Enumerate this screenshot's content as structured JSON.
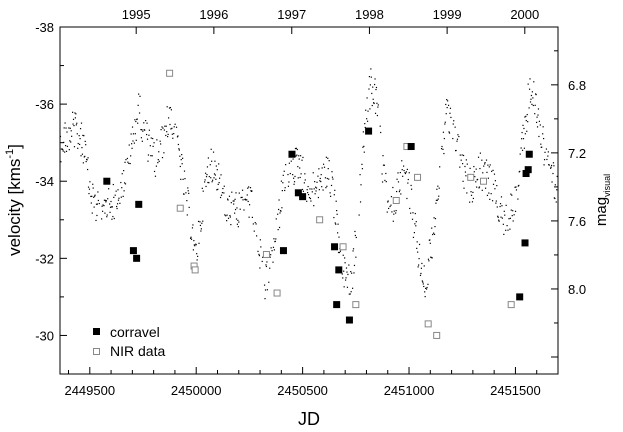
{
  "chart_data": {
    "type": "scatter",
    "xlabel": "JD",
    "ylabel_main": "velocity [kms",
    "ylabel_sup": "-1",
    "ylabel_close": "]",
    "y2label_main": "mag",
    "y2label_sub": "visual",
    "xlim": [
      2449360,
      2451700
    ],
    "ylim": [
      -29,
      -38
    ],
    "y2lim": [
      8.5,
      6.46
    ],
    "grid": false,
    "legend_position": "bottom-left",
    "x_ticks": [
      {
        "value": 2449500,
        "label": "2449500"
      },
      {
        "value": 2450000,
        "label": "2450000"
      },
      {
        "value": 2450500,
        "label": "2450500"
      },
      {
        "value": 2451000,
        "label": "2451000"
      },
      {
        "value": 2451500,
        "label": "2451500"
      }
    ],
    "y_ticks": [
      {
        "value": -38,
        "label": "-38"
      },
      {
        "value": -36,
        "label": "-36"
      },
      {
        "value": -34,
        "label": "-34"
      },
      {
        "value": -32,
        "label": "-32"
      },
      {
        "value": -30,
        "label": "-30"
      }
    ],
    "y2_ticks": [
      {
        "value": 6.8,
        "label": "6.8"
      },
      {
        "value": 7.2,
        "label": "7.2"
      },
      {
        "value": 7.6,
        "label": "7.6"
      },
      {
        "value": 8.0,
        "label": "8.0"
      }
    ],
    "year_ticks": [
      {
        "value": 2449718,
        "label": "1995"
      },
      {
        "value": 2450083,
        "label": "1996"
      },
      {
        "value": 2450449,
        "label": "1997"
      },
      {
        "value": 2450814,
        "label": "1998"
      },
      {
        "value": 2451179,
        "label": "1999"
      },
      {
        "value": 2451544,
        "label": "2000"
      }
    ],
    "series": [
      {
        "name": "corravel",
        "marker": "filled-square",
        "color": "#000000",
        "x": [
          2449580,
          2449705,
          2449720,
          2449730,
          2450410,
          2450450,
          2450480,
          2450500,
          2450650,
          2450660,
          2450670,
          2450720,
          2450810,
          2451010,
          2451520,
          2451545,
          2451550,
          2451560,
          2451565
        ],
        "y": [
          -34.0,
          -32.2,
          -32.0,
          -33.4,
          -32.2,
          -34.7,
          -33.7,
          -33.6,
          -32.3,
          -30.8,
          -31.7,
          -30.4,
          -35.3,
          -34.9,
          -31.0,
          -32.4,
          -34.2,
          -34.3,
          -34.7
        ]
      },
      {
        "name": "NIR data",
        "marker": "open-square",
        "color": "#888888",
        "x": [
          2449875,
          2449925,
          2449990,
          2449995,
          2450330,
          2450380,
          2450580,
          2450690,
          2450750,
          2450940,
          2450990,
          2451040,
          2451090,
          2451130,
          2451290,
          2451350,
          2451480
        ],
        "y": [
          -36.8,
          -33.3,
          -31.8,
          -31.7,
          -32.1,
          -31.1,
          -33.0,
          -32.3,
          -30.8,
          -33.5,
          -34.9,
          -34.1,
          -30.3,
          -30.0,
          -34.1,
          -34.0,
          -30.8
        ]
      },
      {
        "name": "visual magnitude",
        "marker": "dot",
        "color": "#000000",
        "axis": "right",
        "x_range": [
          2449360,
          2451700
        ],
        "nodes": [
          [
            2449360,
            7.15
          ],
          [
            2449420,
            7.05
          ],
          [
            2449470,
            7.15
          ],
          [
            2449505,
            7.45
          ],
          [
            2449560,
            7.55
          ],
          [
            2449600,
            7.5
          ],
          [
            2449640,
            7.45
          ],
          [
            2449690,
            7.2
          ],
          [
            2449730,
            6.95
          ],
          [
            2449775,
            7.15
          ],
          [
            2449810,
            7.25
          ],
          [
            2449850,
            7.1
          ],
          [
            2449880,
            6.95
          ],
          [
            2449920,
            7.2
          ],
          [
            2449950,
            7.45
          ],
          [
            2449990,
            7.7
          ],
          [
            2450000,
            7.8
          ],
          [
            2450040,
            7.4
          ],
          [
            2450070,
            7.25
          ],
          [
            2450110,
            7.35
          ],
          [
            2450140,
            7.5
          ],
          [
            2450200,
            7.55
          ],
          [
            2450240,
            7.45
          ],
          [
            2450280,
            7.6
          ],
          [
            2450320,
            8.0
          ],
          [
            2450370,
            7.7
          ],
          [
            2450410,
            7.4
          ],
          [
            2450450,
            7.3
          ],
          [
            2450480,
            7.25
          ],
          [
            2450510,
            7.35
          ],
          [
            2450540,
            7.45
          ],
          [
            2450580,
            7.35
          ],
          [
            2450620,
            7.3
          ],
          [
            2450650,
            7.5
          ],
          [
            2450690,
            7.9
          ],
          [
            2450730,
            7.95
          ],
          [
            2450760,
            7.6
          ],
          [
            2450790,
            7.1
          ],
          [
            2450820,
            6.8
          ],
          [
            2450850,
            6.9
          ],
          [
            2450880,
            7.35
          ],
          [
            2450910,
            7.55
          ],
          [
            2450940,
            7.45
          ],
          [
            2450970,
            7.3
          ],
          [
            2451000,
            7.4
          ],
          [
            2451050,
            7.85
          ],
          [
            2451080,
            7.95
          ],
          [
            2451110,
            7.7
          ],
          [
            2451150,
            7.25
          ],
          [
            2451180,
            6.95
          ],
          [
            2451210,
            7.05
          ],
          [
            2451250,
            7.3
          ],
          [
            2451290,
            7.4
          ],
          [
            2451330,
            7.3
          ],
          [
            2451370,
            7.35
          ],
          [
            2451410,
            7.45
          ],
          [
            2451450,
            7.6
          ],
          [
            2451500,
            7.5
          ],
          [
            2451540,
            7.1
          ],
          [
            2451570,
            6.8
          ],
          [
            2451600,
            6.95
          ],
          [
            2451640,
            7.2
          ],
          [
            2451680,
            7.35
          ],
          [
            2451700,
            7.4
          ]
        ]
      }
    ]
  }
}
